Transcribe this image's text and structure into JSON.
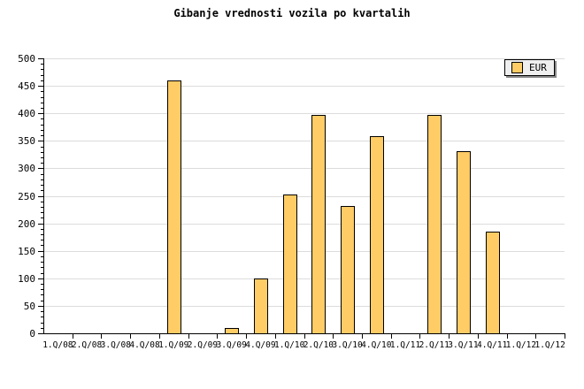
{
  "chart_data": {
    "type": "bar",
    "title": "Gibanje vrednosti vozila po kvartalih",
    "categories": [
      "1.Q/08",
      "2.Q/08",
      "3.Q/08",
      "4.Q/08",
      "1.Q/09",
      "2.Q/09",
      "3.Q/09",
      "4.Q/09",
      "1.Q/10",
      "2.Q/10",
      "3.Q/10",
      "4.Q/10",
      "1.Q/11",
      "2.Q/11",
      "3.Q/11",
      "4.Q/11",
      "1.Q/12",
      "1.Q/12"
    ],
    "series": [
      {
        "name": "EUR",
        "values": [
          0,
          0,
          0,
          0,
          460,
          0,
          10,
          99,
          252,
          397,
          231,
          358,
          0,
          397,
          331,
          185,
          0,
          0
        ]
      }
    ],
    "xlabel": "",
    "ylabel": "",
    "ylim": [
      0,
      500
    ],
    "ytick_step": 50,
    "ytick_minor_step": 10,
    "ytick_labels": [
      "0",
      "50",
      "100",
      "150",
      "200",
      "250",
      "300",
      "350",
      "400",
      "450",
      "500"
    ],
    "grid": "horizontal-only",
    "legend_position": "top-right",
    "colors": {
      "bar_fill": "#FFCC66",
      "bar_border": "#000000",
      "grid": "#DCDCDC",
      "axis": "#000000",
      "text": "#000000",
      "background": "#FFFFFF",
      "legend_bg": "#EFEFEF",
      "legend_border": "#000000",
      "legend_shadow": "#888888"
    }
  }
}
